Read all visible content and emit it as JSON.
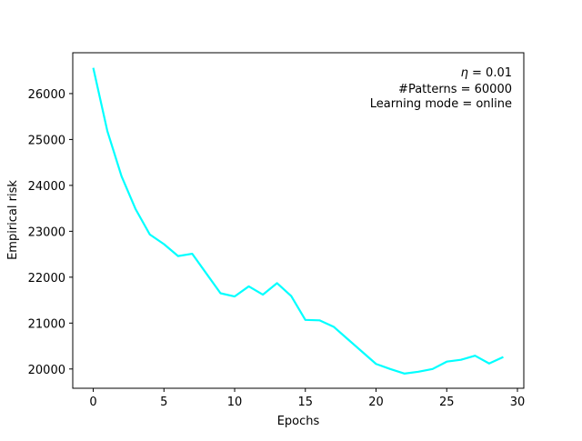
{
  "chart_data": {
    "type": "line",
    "xlabel": "Epochs",
    "ylabel": "Empirical risk",
    "xlim": [
      -1.45,
      30.45
    ],
    "ylim": [
      19580,
      26890
    ],
    "x_ticks": [
      0,
      5,
      10,
      15,
      20,
      25,
      30
    ],
    "y_ticks": [
      20000,
      21000,
      22000,
      23000,
      24000,
      25000,
      26000
    ],
    "grid": false,
    "series": [
      {
        "color": "#00ffff",
        "x": [
          0,
          1,
          2,
          3,
          4,
          5,
          6,
          7,
          8,
          9,
          10,
          11,
          12,
          13,
          14,
          15,
          16,
          17,
          18,
          19,
          20,
          21,
          22,
          23,
          24,
          25,
          26,
          27,
          28,
          29
        ],
        "values": [
          26560,
          25180,
          24200,
          23480,
          22930,
          22720,
          22460,
          22510,
          22080,
          21650,
          21580,
          21800,
          21620,
          21870,
          21590,
          21070,
          21060,
          20920,
          20650,
          20380,
          20110,
          20000,
          19900,
          19940,
          20000,
          20160,
          20200,
          20290,
          20120,
          20260
        ]
      }
    ],
    "annotations": {
      "eta_symbol": "η",
      "eta_rest": " = 0.01",
      "patterns": "#Patterns = 60000",
      "mode": "Learning mode = online"
    }
  }
}
